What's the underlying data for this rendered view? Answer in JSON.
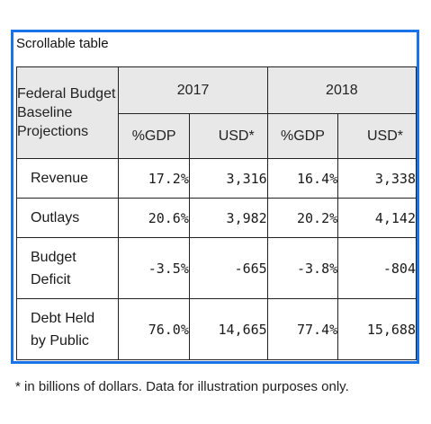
{
  "caption": "Scrollable table",
  "table": {
    "corner_label": "Federal Budget Baseline Projections",
    "years": [
      "2017",
      "2018"
    ],
    "sub_headers": {
      "pct": "%GDP",
      "usd": "USD*"
    },
    "rows": [
      {
        "label": "Revenue",
        "cells": [
          "17.2%",
          "3,316",
          "16.4%",
          "3,338"
        ]
      },
      {
        "label": "Outlays",
        "cells": [
          "20.6%",
          "3,982",
          "20.2%",
          "4,142"
        ]
      },
      {
        "label": "Budget Deficit",
        "cells": [
          "-3.5%",
          "-665",
          "-3.8%",
          "-804"
        ]
      },
      {
        "label": "Debt Held by Public",
        "cells": [
          "76.0%",
          "14,665",
          "77.4%",
          "15,688"
        ]
      }
    ]
  },
  "footnote": "* in billions of dollars. Data for illustration purposes only.",
  "colors": {
    "focus_border": "#1a73e8",
    "header_bg": "#e8e8e8"
  }
}
